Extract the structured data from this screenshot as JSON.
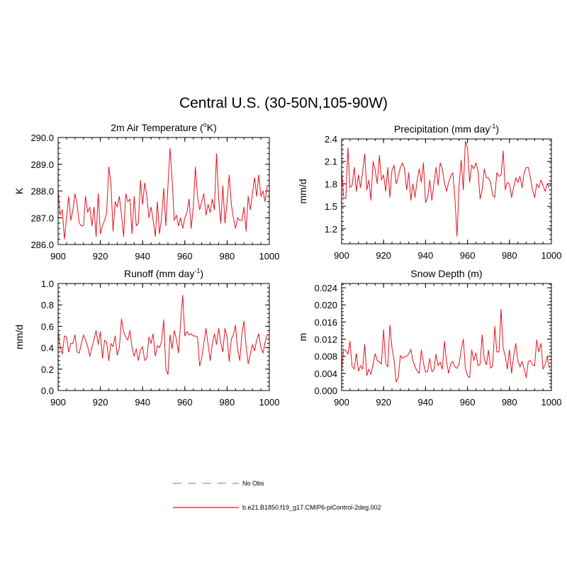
{
  "title": "Central U.S. (30-50N,105-90W)",
  "colors": {
    "series": "#e8111d",
    "obs": "#8f8fee",
    "axis": "#000000"
  },
  "legend": [
    {
      "label": "No Obs",
      "style": "dashed",
      "color": "#8f8fee"
    },
    {
      "label": "b.e21.B1850.f19_g17.CMIP6-piControl-2deg.002",
      "style": "solid",
      "color": "#e8111d"
    }
  ],
  "chart_data": [
    {
      "type": "line",
      "title": "2m Air Temperature (",
      "title_sup": "o",
      "title_after": "K)",
      "ylabel": "K",
      "xlim": [
        900,
        1000
      ],
      "ylim": [
        286.0,
        290.0
      ],
      "xticks": [
        900,
        920,
        940,
        960,
        980,
        1000
      ],
      "yticks": [
        286.0,
        287.0,
        288.0,
        289.0,
        290.0
      ],
      "ytick_labels": [
        "286.0",
        "287.0",
        "288.0",
        "289.0",
        "290.0"
      ],
      "y_minor": 0.2,
      "series": [
        {
          "name": "b.e21.B1850.f19_g17.CMIP6-piControl-2deg.002",
          "x_start": 900,
          "values": [
            288.0,
            287.1,
            287.3,
            286.2,
            287.0,
            287.8,
            286.9,
            287.3,
            287.9,
            287.5,
            286.8,
            286.7,
            286.7,
            287.8,
            287.2,
            287.4,
            286.7,
            287.4,
            286.3,
            287.9,
            286.4,
            286.7,
            286.9,
            287.2,
            288.9,
            288.3,
            286.5,
            287.6,
            287.4,
            287.8,
            287.1,
            286.3,
            287.9,
            287.6,
            287.7,
            286.4,
            287.8,
            286.7,
            286.8,
            288.4,
            287.5,
            288.3,
            287.8,
            287.0,
            287.4,
            286.9,
            286.3,
            287.6,
            286.4,
            287.0,
            288.1,
            286.7,
            288.2,
            289.6,
            288.4,
            286.9,
            287.1,
            286.7,
            287.0,
            286.6,
            287.0,
            287.2,
            287.7,
            286.6,
            287.4,
            288.9,
            287.8,
            287.3,
            287.6,
            287.9,
            287.1,
            287.5,
            287.2,
            287.7,
            287.3,
            289.4,
            287.7,
            286.8,
            288.2,
            286.8,
            287.6,
            288.6,
            287.5,
            287.0,
            286.6,
            287.0,
            286.9,
            286.9,
            287.4,
            286.5,
            287.8,
            287.3,
            287.9,
            288.5,
            287.8,
            288.6,
            287.8,
            288.0,
            287.6,
            288.2,
            null
          ]
        }
      ]
    },
    {
      "type": "line",
      "title": "Precipitation (mm day",
      "title_sup": "-1",
      "title_after": ")",
      "ylabel": "mm/d",
      "xlim": [
        900,
        1000
      ],
      "ylim": [
        1.0,
        2.4
      ],
      "xticks": [
        900,
        920,
        940,
        960,
        980,
        1000
      ],
      "yticks": [
        1.2,
        1.5,
        1.8,
        2.1,
        2.4
      ],
      "ytick_labels": [
        "1.2",
        "1.5",
        "1.8",
        "2.1",
        "2.4"
      ],
      "y_minor": 0.06,
      "series": [
        {
          "name": "b.e21.B1850.f19_g17.CMIP6-piControl-2deg.002",
          "x_start": 900,
          "values": [
            1.98,
            1.62,
            1.6,
            2.28,
            1.75,
            1.78,
            2.02,
            1.7,
            1.92,
            1.75,
            1.95,
            2.2,
            1.72,
            1.85,
            1.58,
            2.1,
            1.98,
            1.8,
            2.18,
            1.85,
            1.92,
            1.7,
            2.02,
            1.62,
            1.98,
            2.05,
            1.8,
            1.9,
            2.02,
            2.08,
            2.0,
            1.72,
            1.95,
            1.58,
            1.8,
            1.62,
            1.85,
            2.0,
            1.82,
            2.08,
            1.55,
            1.62,
            1.85,
            1.58,
            1.8,
            2.02,
            1.78,
            2.08,
            2.0,
            1.82,
            1.7,
            1.82,
            1.9,
            1.95,
            1.62,
            1.1,
            1.78,
            2.12,
            1.72,
            2.37,
            2.28,
            1.82,
            2.05,
            2.0,
            2.08,
            1.98,
            1.6,
            1.72,
            2.0,
            1.88,
            1.88,
            1.82,
            1.65,
            1.62,
            1.95,
            1.9,
            1.92,
            2.24,
            1.72,
            1.82,
            1.8,
            1.62,
            1.75,
            1.88,
            1.82,
            1.9,
            1.75,
            1.95,
            2.02,
            2.02,
            1.88,
            1.72,
            1.62,
            1.8,
            1.75,
            1.85,
            1.78,
            1.7,
            1.8,
            1.75,
            null
          ]
        }
      ]
    },
    {
      "type": "line",
      "title": "Runoff (mm day",
      "title_sup": "-1",
      "title_after": ")",
      "ylabel": "mm/d",
      "xlim": [
        900,
        1000
      ],
      "ylim": [
        0.0,
        1.0
      ],
      "xticks": [
        900,
        920,
        940,
        960,
        980,
        1000
      ],
      "yticks": [
        0.0,
        0.2,
        0.4,
        0.6,
        0.8,
        1.0
      ],
      "ytick_labels": [
        "0.0",
        "0.2",
        "0.4",
        "0.6",
        "0.8",
        "1.0"
      ],
      "y_minor": 0.04,
      "series": [
        {
          "name": "b.e21.B1850.f19_g17.CMIP6-piControl-2deg.002",
          "x_start": 900,
          "values": [
            0.55,
            0.4,
            0.34,
            0.51,
            0.5,
            0.36,
            0.44,
            0.44,
            0.52,
            0.36,
            0.35,
            0.44,
            0.52,
            0.47,
            0.41,
            0.32,
            0.4,
            0.48,
            0.56,
            0.43,
            0.55,
            0.3,
            0.47,
            0.45,
            0.28,
            0.44,
            0.41,
            0.51,
            0.33,
            0.4,
            0.67,
            0.55,
            0.5,
            0.47,
            0.56,
            0.4,
            0.32,
            0.39,
            0.28,
            0.38,
            0.41,
            0.28,
            0.3,
            0.5,
            0.44,
            0.53,
            0.32,
            0.42,
            0.4,
            0.46,
            0.66,
            0.2,
            0.15,
            0.52,
            0.39,
            0.56,
            0.48,
            0.35,
            0.64,
            0.89,
            0.51,
            0.55,
            0.52,
            0.53,
            0.51,
            0.51,
            0.5,
            0.23,
            0.3,
            0.44,
            0.58,
            0.43,
            0.28,
            0.43,
            0.53,
            0.43,
            0.58,
            0.45,
            0.36,
            0.58,
            0.5,
            0.27,
            0.48,
            0.52,
            0.61,
            0.38,
            0.28,
            0.53,
            0.65,
            0.42,
            0.25,
            0.34,
            0.43,
            0.37,
            0.47,
            0.53,
            0.4,
            0.35,
            0.45,
            0.52,
            null
          ]
        }
      ]
    },
    {
      "type": "line",
      "title": "Snow Depth (m)",
      "title_sup": "",
      "title_after": "",
      "ylabel": "m",
      "xlim": [
        900,
        1000
      ],
      "ylim": [
        0.0,
        0.025
      ],
      "xticks": [
        900,
        920,
        940,
        960,
        980,
        1000
      ],
      "yticks": [
        0.0,
        0.004,
        0.008,
        0.012,
        0.016,
        0.02,
        0.024
      ],
      "ytick_labels": [
        "0.000",
        "0.004",
        "0.008",
        "0.012",
        "0.016",
        "0.020",
        "0.024"
      ],
      "y_minor": 0.0008,
      "series": [
        {
          "name": "b.e21.B1850.f19_g17.CMIP6-piControl-2deg.002",
          "x_start": 900,
          "values": [
            0.0048,
            0.0096,
            0.0093,
            0.0085,
            0.0115,
            0.0056,
            0.005,
            0.0087,
            0.0045,
            0.0058,
            0.005,
            0.0108,
            0.0035,
            0.005,
            0.0038,
            0.0062,
            0.0086,
            0.007,
            0.0067,
            0.0062,
            0.0142,
            0.0064,
            0.0055,
            0.0153,
            0.01,
            0.0072,
            0.002,
            0.003,
            0.0082,
            0.0075,
            0.0079,
            0.008,
            0.0086,
            0.0096,
            0.007,
            0.0056,
            0.0045,
            0.004,
            0.0095,
            0.0065,
            0.0043,
            0.0044,
            0.0075,
            0.0044,
            0.0048,
            0.0085,
            0.0058,
            0.0066,
            0.005,
            0.0115,
            0.0068,
            0.004,
            0.0062,
            0.0068,
            0.0055,
            0.0052,
            0.0062,
            0.0094,
            0.012,
            0.0052,
            0.0035,
            0.003,
            0.0095,
            0.007,
            0.0088,
            0.0058,
            0.0062,
            0.013,
            0.0073,
            0.006,
            0.0094,
            0.0052,
            0.0058,
            0.015,
            0.009,
            0.009,
            0.019,
            0.01,
            0.008,
            0.005,
            0.0095,
            0.004,
            0.0081,
            0.011,
            0.007,
            0.0055,
            0.0068,
            0.005,
            0.003,
            0.0068,
            0.007,
            0.006,
            0.0058,
            0.0118,
            0.009,
            0.011,
            0.005,
            0.006,
            0.008,
            0.0052,
            null
          ]
        }
      ]
    }
  ]
}
